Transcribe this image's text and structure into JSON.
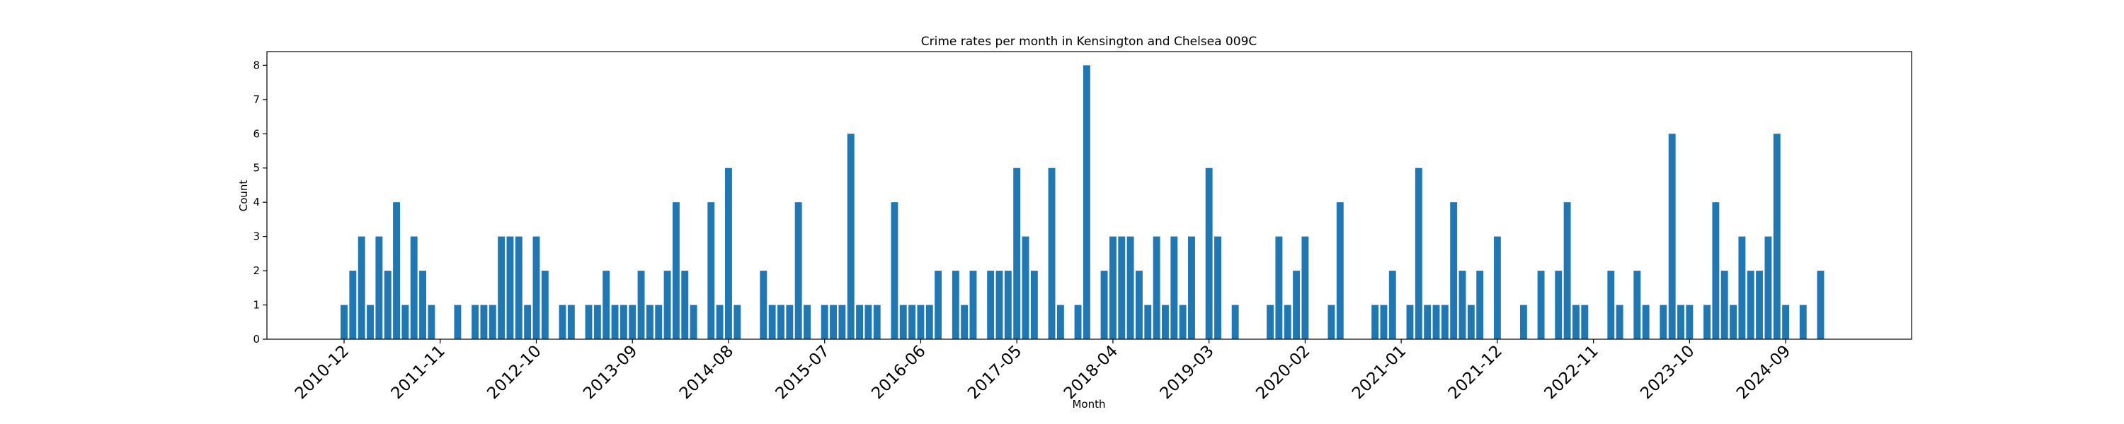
{
  "chart_data": {
    "type": "bar",
    "title": "Crime rates per month in Kensington and Chelsea 009C",
    "x_label": "Month",
    "y_label": "Count",
    "color": "#1f77b4",
    "categories": [
      "2010-12",
      null,
      null,
      null,
      null,
      null,
      null,
      null,
      null,
      null,
      null,
      "2011-11",
      null,
      null,
      null,
      null,
      null,
      null,
      null,
      null,
      null,
      null,
      "2012-10",
      null,
      null,
      null,
      null,
      null,
      null,
      null,
      null,
      null,
      null,
      "2013-09",
      null,
      null,
      null,
      null,
      null,
      null,
      null,
      null,
      null,
      null,
      "2014-08",
      null,
      null,
      null,
      null,
      null,
      null,
      null,
      null,
      null,
      null,
      "2015-07",
      null,
      null,
      null,
      null,
      null,
      null,
      null,
      null,
      null,
      null,
      "2016-06",
      null,
      null,
      null,
      null,
      null,
      null,
      null,
      null,
      null,
      null,
      "2017-05",
      null,
      null,
      null,
      null,
      null,
      null,
      null,
      null,
      null,
      null,
      "2018-04",
      null,
      null,
      null,
      null,
      null,
      null,
      null,
      null,
      null,
      null,
      "2019-03",
      null,
      null,
      null,
      null,
      null,
      null,
      null,
      null,
      null,
      null,
      "2020-02",
      null,
      null,
      null,
      null,
      null,
      null,
      null,
      null,
      null,
      null,
      "2021-01",
      null,
      null,
      null,
      null,
      null,
      null,
      null,
      null,
      null,
      null,
      "2021-12",
      null,
      null,
      null,
      null,
      null,
      null,
      null,
      null,
      null,
      null,
      "2022-11",
      null,
      null,
      null,
      null,
      null,
      null,
      null,
      null,
      null,
      null,
      "2023-10",
      null,
      null,
      null,
      null,
      null,
      null,
      null,
      null,
      null,
      null,
      "2024-09",
      null,
      null,
      null,
      null
    ],
    "values": [
      1,
      2,
      3,
      1,
      3,
      2,
      4,
      1,
      3,
      2,
      1,
      0,
      0,
      1,
      0,
      1,
      1,
      1,
      3,
      3,
      3,
      1,
      3,
      2,
      0,
      1,
      1,
      0,
      1,
      1,
      2,
      1,
      1,
      1,
      2,
      1,
      1,
      2,
      4,
      2,
      1,
      0,
      4,
      1,
      5,
      1,
      0,
      0,
      2,
      1,
      1,
      1,
      4,
      1,
      0,
      1,
      1,
      1,
      6,
      1,
      1,
      1,
      0,
      4,
      1,
      1,
      1,
      1,
      2,
      0,
      2,
      1,
      2,
      0,
      2,
      2,
      2,
      5,
      3,
      2,
      0,
      5,
      1,
      0,
      1,
      8,
      0,
      2,
      3,
      3,
      3,
      2,
      1,
      3,
      1,
      3,
      1,
      3,
      0,
      5,
      3,
      0,
      1,
      0,
      0,
      0,
      1,
      3,
      1,
      2,
      3,
      0,
      0,
      1,
      4,
      0,
      0,
      0,
      1,
      1,
      2,
      0,
      1,
      5,
      1,
      1,
      1,
      4,
      2,
      1,
      2,
      0,
      3,
      0,
      0,
      1,
      0,
      2,
      0,
      2,
      4,
      1,
      1,
      0,
      0,
      2,
      1,
      0,
      2,
      1,
      0,
      1,
      6,
      1,
      1,
      0,
      1,
      4,
      2,
      1,
      3,
      2,
      2,
      3,
      6,
      1,
      0,
      1,
      0,
      2
    ],
    "ylim": [
      0,
      8.4
    ],
    "yticks": [
      0,
      1,
      2,
      3,
      4,
      5,
      6,
      7,
      8
    ],
    "grid": false
  }
}
